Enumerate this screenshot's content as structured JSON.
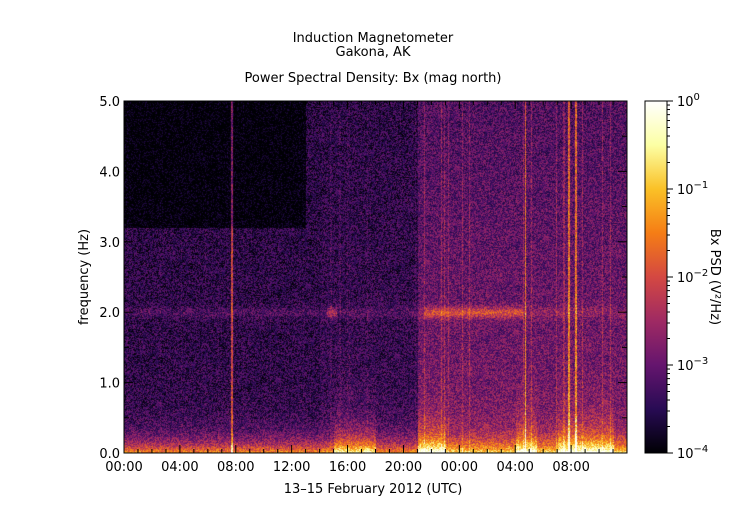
{
  "chart_data": {
    "type": "heatmap",
    "title": "Induction Magnetometer",
    "subtitle": "Gakona, AK",
    "plot_title": "Power Spectral Density: Bx (mag north)",
    "xlabel": "13–15 February 2012 (UTC)",
    "ylabel": "frequency (Hz)",
    "x_unit": "hours since 00:00 UTC, 14 Feb 2012",
    "xlim": [
      0,
      36
    ],
    "ylim": [
      0.0,
      5.0
    ],
    "x_ticks": [
      {
        "value": 0,
        "label": "00:00"
      },
      {
        "value": 4,
        "label": "04:00"
      },
      {
        "value": 8,
        "label": "08:00"
      },
      {
        "value": 12,
        "label": "12:00"
      },
      {
        "value": 16,
        "label": "16:00"
      },
      {
        "value": 20,
        "label": "20:00"
      },
      {
        "value": 24,
        "label": "00:00"
      },
      {
        "value": 28,
        "label": "04:00"
      },
      {
        "value": 32,
        "label": "08:00"
      }
    ],
    "y_ticks": [
      {
        "value": 0.0,
        "label": "0.0"
      },
      {
        "value": 1.0,
        "label": "1.0"
      },
      {
        "value": 2.0,
        "label": "2.0"
      },
      {
        "value": 3.0,
        "label": "3.0"
      },
      {
        "value": 4.0,
        "label": "4.0"
      },
      {
        "value": 5.0,
        "label": "5.0"
      }
    ],
    "colorbar": {
      "label": "Bx PSD (V²/Hz)",
      "scale": "log",
      "range": [
        0.0001,
        1
      ],
      "tick_labels": [
        {
          "base": "10",
          "exp": "0"
        },
        {
          "base": "10",
          "exp": "−1"
        },
        {
          "base": "10",
          "exp": "−2"
        },
        {
          "base": "10",
          "exp": "−3"
        },
        {
          "base": "10",
          "exp": "−4"
        }
      ],
      "colormap": [
        "#000004",
        "#280b54",
        "#65156e",
        "#9f2a63",
        "#d44842",
        "#f57d15",
        "#fac127",
        "#fcffa4",
        "#ffffff"
      ]
    },
    "features": {
      "quiet_until_hour": 21,
      "pc1_band_hz": 2.0,
      "pc1_band_intervals": [
        [
          14.5,
          15.2
        ],
        [
          21.5,
          28.5
        ]
      ],
      "low_freq_enhancement_intervals": [
        [
          15,
          18
        ],
        [
          21,
          23
        ],
        [
          28,
          29.5
        ],
        [
          31,
          35
        ]
      ],
      "vertical_spikes_hours": [
        7.7,
        28.7,
        31.8,
        32.3
      ]
    }
  }
}
